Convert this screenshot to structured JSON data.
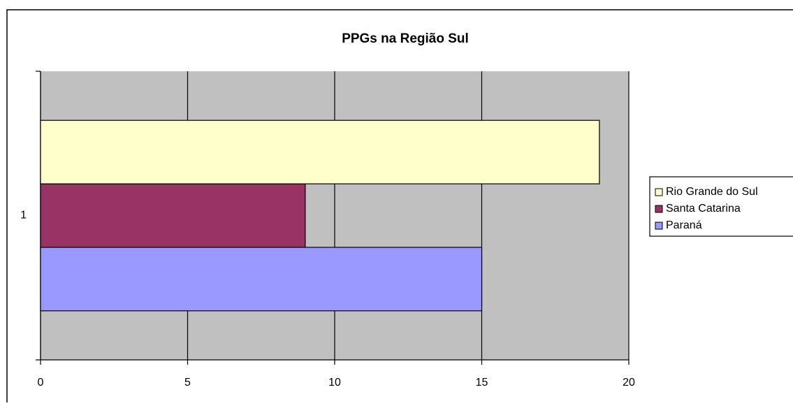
{
  "chart_data": {
    "type": "bar",
    "orientation": "horizontal",
    "title": "PPGs na Região Sul",
    "categories": [
      "1"
    ],
    "series": [
      {
        "name": "Paraná",
        "color": "#9999ff",
        "values": [
          15
        ]
      },
      {
        "name": "Santa Catarina",
        "color": "#993366",
        "values": [
          9
        ]
      },
      {
        "name": "Rio Grande do Sul",
        "color": "#ffffcc",
        "values": [
          19
        ]
      }
    ],
    "xlim": [
      0,
      20
    ],
    "xticks": [
      0,
      5,
      10,
      15,
      20
    ],
    "grid": true,
    "legend": "right",
    "plot_background": "#c0c0c0"
  }
}
